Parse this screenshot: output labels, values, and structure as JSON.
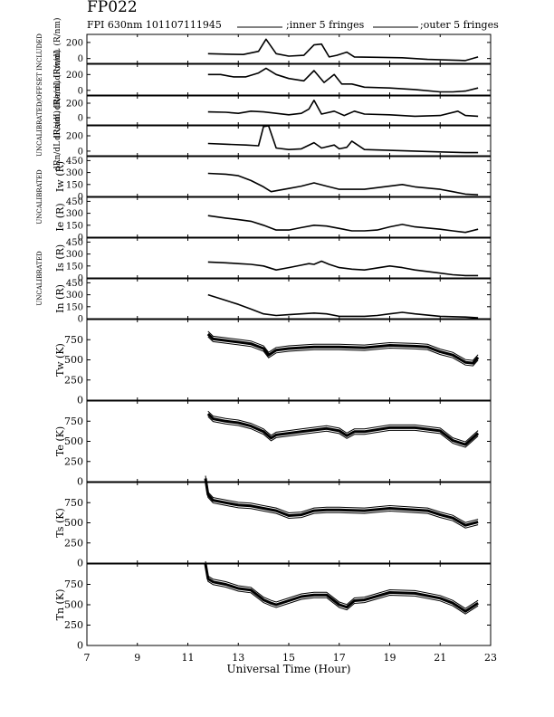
{
  "header": {
    "title": "FP022",
    "subtitle": "FPI 630nm 101107111945",
    "legend": [
      {
        "label": ";inner 5 fringes"
      },
      {
        "label": ";outer 5 fringes"
      }
    ]
  },
  "chart_data": {
    "type": "line",
    "xlabel": "Universal Time (Hour)",
    "xlim": [
      7,
      23
    ],
    "xticks": [
      "7",
      "9",
      "11",
      "13",
      "15",
      "17",
      "19",
      "21",
      "23"
    ],
    "xtick_values": [
      7,
      9,
      11,
      13,
      15,
      17,
      19,
      21,
      23
    ],
    "group_labels": [
      "UNCALIBRATED/OFFSET INCLUDED",
      "UNCALIBRATED",
      "UNCALIBRATED"
    ],
    "panels": [
      {
        "ylabel": "dRw/dL (R/nm)",
        "ylim": [
          -60,
          300
        ],
        "yticks": [
          0,
          200
        ],
        "series": [
          {
            "x": [
              11.8,
              12.5,
              13.2,
              13.8,
              14.1,
              14.5,
              15.0,
              15.6,
              16.0,
              16.3,
              16.6,
              16.9,
              17.3,
              17.6,
              18.5,
              19.5,
              20.5,
              21.5,
              22.0,
              22.5
            ],
            "y": [
              60,
              55,
              50,
              90,
              240,
              60,
              30,
              40,
              170,
              180,
              20,
              40,
              80,
              20,
              15,
              10,
              -10,
              -20,
              -25,
              20
            ]
          }
        ]
      },
      {
        "ylabel": "dRe/dL (R/nm)",
        "ylim": [
          -60,
          330
        ],
        "yticks": [
          0,
          200
        ],
        "series": [
          {
            "x": [
              11.8,
              12.3,
              12.8,
              13.3,
              13.8,
              14.1,
              14.5,
              15.0,
              15.6,
              16.0,
              16.4,
              16.8,
              17.1,
              17.5,
              18.0,
              19.0,
              20.0,
              21.0,
              21.5,
              22.0,
              22.5
            ],
            "y": [
              200,
              200,
              170,
              170,
              220,
              280,
              200,
              150,
              120,
              250,
              100,
              200,
              80,
              80,
              40,
              30,
              10,
              -20,
              -20,
              -10,
              30
            ]
          }
        ]
      },
      {
        "ylabel": "dRs/dL (R/nm)",
        "ylim": [
          -100,
          300
        ],
        "yticks": [
          0,
          200
        ],
        "series": [
          {
            "x": [
              11.8,
              12.5,
              13.0,
              13.5,
              14.0,
              14.5,
              15.0,
              15.5,
              15.8,
              16.0,
              16.3,
              16.8,
              17.2,
              17.6,
              18.0,
              19.0,
              20.0,
              21.0,
              21.7,
              22.0,
              22.5
            ],
            "y": [
              80,
              75,
              60,
              90,
              80,
              60,
              40,
              60,
              120,
              240,
              50,
              90,
              30,
              90,
              50,
              40,
              20,
              30,
              90,
              30,
              20
            ]
          }
        ]
      },
      {
        "ylabel": "dRn/dL (R/nm)",
        "ylim": [
          -60,
          330
        ],
        "yticks": [
          0,
          200
        ],
        "series": [
          {
            "x": [
              11.8,
              12.5,
              13.3,
              13.8,
              14.0,
              14.2,
              14.5,
              15.0,
              15.5,
              16.0,
              16.3,
              16.8,
              17.0,
              17.3,
              17.5,
              18.0,
              19.0,
              20.0,
              21.0,
              22.0,
              22.5
            ],
            "y": [
              100,
              90,
              80,
              70,
              320,
              330,
              40,
              20,
              30,
              110,
              40,
              80,
              30,
              50,
              130,
              20,
              10,
              0,
              -10,
              -20,
              -20
            ]
          }
        ]
      },
      {
        "ylabel": "Iw (R)",
        "ylim": [
          0,
          500
        ],
        "yticks": [
          0,
          150,
          300,
          450
        ],
        "series": [
          {
            "x": [
              11.8,
              12.5,
              13.0,
              13.5,
              14.0,
              14.3,
              15.0,
              15.5,
              16.0,
              16.5,
              17.0,
              18.0,
              19.0,
              19.5,
              20.0,
              21.0,
              21.5,
              22.0,
              22.5
            ],
            "y": [
              290,
              280,
              260,
              200,
              120,
              60,
              100,
              130,
              170,
              130,
              90,
              90,
              130,
              150,
              120,
              90,
              60,
              30,
              20
            ]
          }
        ]
      },
      {
        "ylabel": "Ie (R)",
        "ylim": [
          0,
          500
        ],
        "yticks": [
          0,
          150,
          300,
          450
        ],
        "series": [
          {
            "x": [
              11.8,
              12.5,
              13.0,
              13.5,
              14.0,
              14.5,
              15.0,
              15.5,
              16.0,
              16.5,
              17.0,
              17.5,
              18.0,
              18.5,
              19.0,
              19.5,
              20.0,
              21.0,
              21.5,
              22.0,
              22.5
            ],
            "y": [
              270,
              240,
              220,
              200,
              150,
              90,
              90,
              120,
              150,
              140,
              110,
              80,
              80,
              90,
              130,
              160,
              130,
              100,
              80,
              60,
              100
            ]
          }
        ]
      },
      {
        "ylabel": "Is (R)",
        "ylim": [
          0,
          500
        ],
        "yticks": [
          0,
          150,
          300,
          450
        ],
        "series": [
          {
            "x": [
              11.8,
              12.5,
              13.0,
              13.5,
              14.0,
              14.5,
              15.0,
              15.5,
              15.8,
              16.0,
              16.3,
              16.6,
              17.0,
              17.5,
              18.0,
              19.0,
              19.5,
              20.0,
              21.0,
              21.5,
              22.0,
              22.5
            ],
            "y": [
              200,
              190,
              180,
              170,
              150,
              100,
              130,
              160,
              180,
              170,
              210,
              170,
              130,
              110,
              100,
              150,
              130,
              100,
              60,
              40,
              30,
              30
            ]
          }
        ]
      },
      {
        "ylabel": "In (R)",
        "ylim": [
          0,
          500
        ],
        "yticks": [
          0,
          150,
          300,
          450
        ],
        "series": [
          {
            "x": [
              11.8,
              12.5,
              13.0,
              13.5,
              14.0,
              14.5,
              15.0,
              15.5,
              16.0,
              16.5,
              17.0,
              18.0,
              18.5,
              19.0,
              19.5,
              20.0,
              21.0,
              22.0,
              22.5
            ],
            "y": [
              300,
              230,
              180,
              120,
              60,
              40,
              50,
              60,
              70,
              60,
              30,
              30,
              40,
              60,
              80,
              60,
              30,
              20,
              10
            ]
          }
        ]
      },
      {
        "ylabel": "Tw (K)",
        "ylim": [
          0,
          1000
        ],
        "yticks": [
          0,
          250,
          500,
          750
        ],
        "series": [
          {
            "x": [
              11.8,
              12.0,
              12.5,
              13.0,
              13.5,
              14.0,
              14.2,
              14.5,
              15.0,
              15.5,
              16.0,
              17.0,
              18.0,
              19.0,
              20.0,
              20.5,
              21.0,
              21.5,
              22.0,
              22.3,
              22.5
            ],
            "y": [
              820,
              760,
              740,
              720,
              700,
              640,
              560,
              620,
              640,
              650,
              660,
              660,
              650,
              680,
              670,
              660,
              600,
              560,
              470,
              460,
              530
            ]
          }
        ]
      },
      {
        "ylabel": "Te (K)",
        "ylim": [
          0,
          1000
        ],
        "yticks": [
          0,
          250,
          500,
          750
        ],
        "series": [
          {
            "x": [
              11.8,
              12.0,
              12.5,
              13.0,
              13.5,
              14.0,
              14.3,
              14.5,
              15.0,
              15.5,
              16.0,
              16.5,
              17.0,
              17.3,
              17.6,
              18.0,
              19.0,
              20.0,
              21.0,
              21.5,
              22.0,
              22.5
            ],
            "y": [
              840,
              780,
              750,
              730,
              690,
              620,
              540,
              580,
              600,
              620,
              640,
              660,
              630,
              570,
              620,
              620,
              670,
              670,
              630,
              510,
              460,
              600
            ]
          }
        ]
      },
      {
        "ylabel": "Ts (K)",
        "ylim": [
          0,
          1000
        ],
        "yticks": [
          0,
          250,
          500,
          750
        ],
        "series": [
          {
            "x": [
              11.7,
              11.8,
              12.0,
              12.5,
              13.0,
              13.5,
              14.0,
              14.5,
              15.0,
              15.5,
              16.0,
              16.5,
              17.0,
              18.0,
              19.0,
              20.0,
              20.5,
              21.0,
              21.5,
              22.0,
              22.5
            ],
            "y": [
              1050,
              850,
              780,
              750,
              720,
              710,
              680,
              650,
              590,
              600,
              650,
              660,
              660,
              650,
              680,
              660,
              650,
              600,
              560,
              470,
              510
            ]
          }
        ]
      },
      {
        "ylabel": "Tn (K)",
        "ylim": [
          0,
          1000
        ],
        "yticks": [
          0,
          250,
          500,
          750
        ],
        "series": [
          {
            "x": [
              11.7,
              11.8,
              12.0,
              12.5,
              13.0,
              13.5,
              14.0,
              14.3,
              14.5,
              15.0,
              15.5,
              16.0,
              16.5,
              17.0,
              17.3,
              17.6,
              18.0,
              19.0,
              20.0,
              21.0,
              21.5,
              22.0,
              22.5
            ],
            "y": [
              1000,
              820,
              780,
              750,
              700,
              680,
              560,
              520,
              500,
              550,
              600,
              620,
              620,
              500,
              470,
              550,
              560,
              650,
              640,
              580,
              520,
              420,
              520
            ]
          }
        ]
      }
    ]
  }
}
